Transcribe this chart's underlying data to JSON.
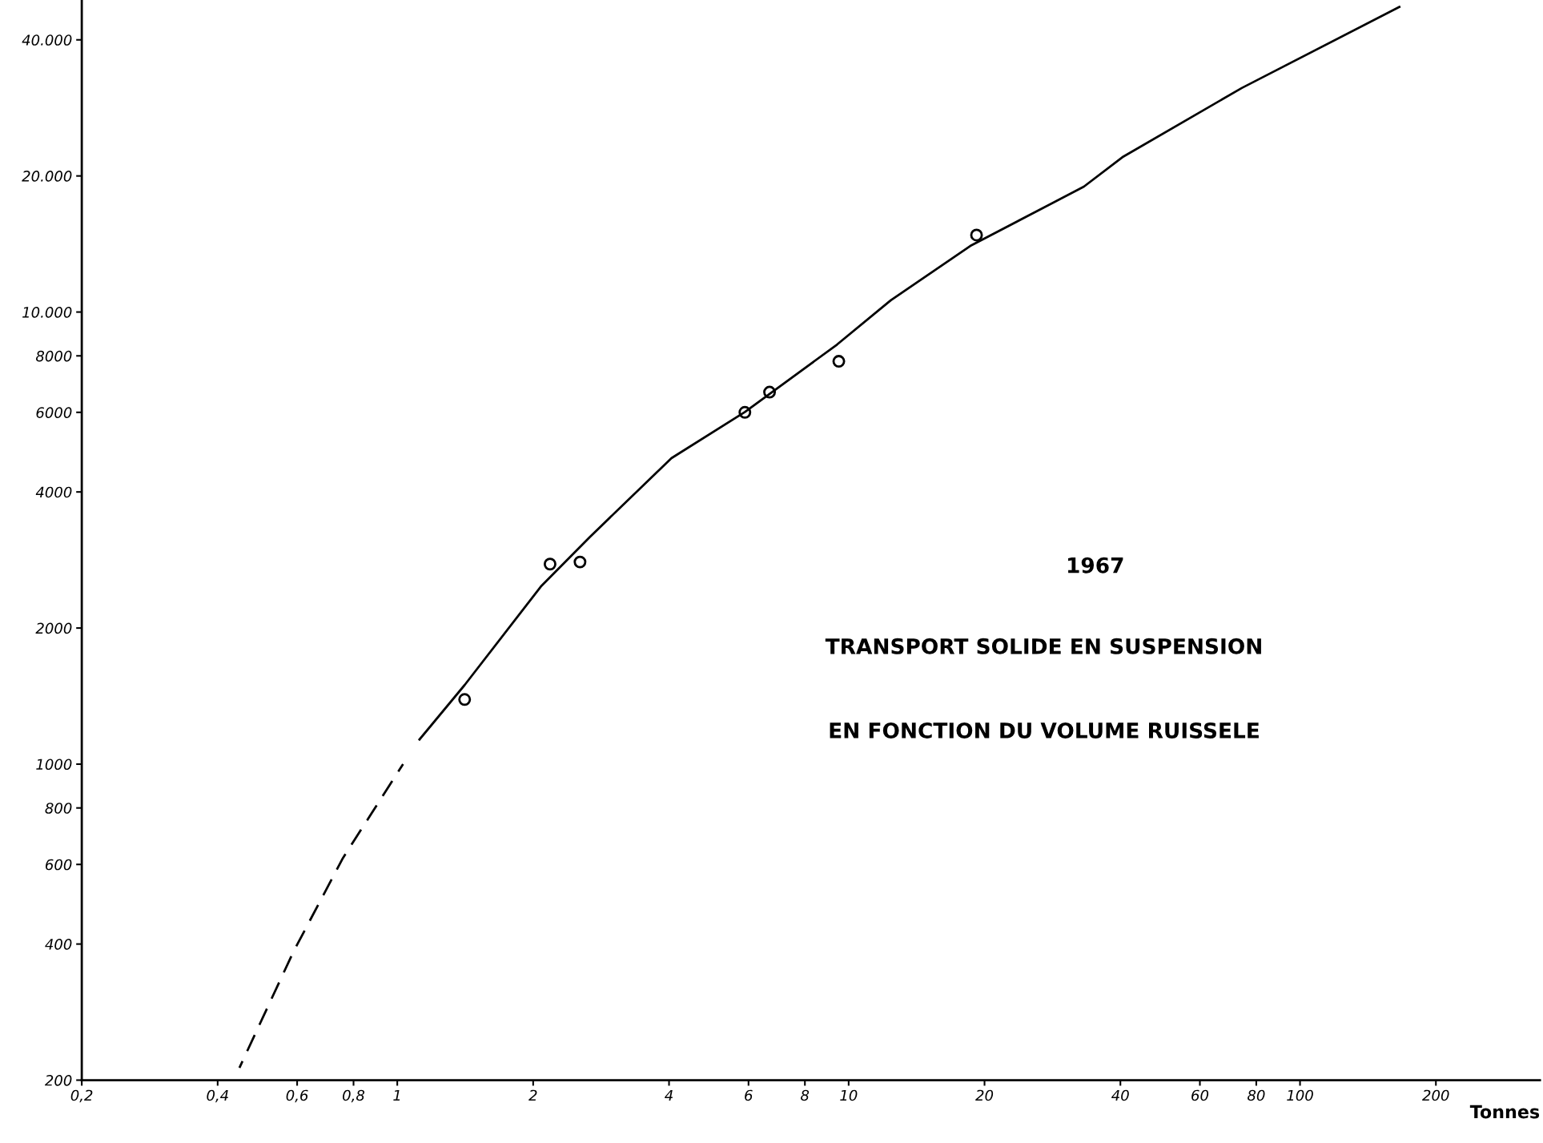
{
  "chart_data": {
    "type": "scatter",
    "xlabel": "Tonnes",
    "log": "xy",
    "xlim": [
      0.2,
      340
    ],
    "ylim": [
      200,
      49000
    ],
    "xticks": [
      {
        "value": 0.2,
        "label": "0,2"
      },
      {
        "value": 0.4,
        "label": "0,4"
      },
      {
        "value": 0.6,
        "label": "0,6"
      },
      {
        "value": 0.8,
        "label": "0,8"
      },
      1,
      2,
      4,
      6,
      8,
      10,
      20,
      40,
      60,
      80,
      100,
      200
    ],
    "yticks": [
      200,
      400,
      600,
      800,
      1000,
      2000,
      4000,
      6000,
      8000,
      {
        "value": 10000,
        "label": "10.000"
      },
      {
        "value": 20000,
        "label": "20.000"
      },
      {
        "value": 40000,
        "label": "40.000"
      }
    ],
    "grid": false,
    "annotations": [
      "1967",
      "TRANSPORT SOLIDE EN SUSPENSION",
      "EN FONCTION DU VOLUME RUISSELE"
    ],
    "series": [
      {
        "color": "#000000",
        "marker": "circle",
        "x": [
          1.41,
          2.18,
          2.54,
          5.89,
          6.68,
          9.51,
          19.2
        ],
        "values": [
          1390,
          2770,
          2800,
          6000,
          6650,
          7780,
          14800
        ]
      },
      {
        "type": "line",
        "color": "#000000",
        "line_style": "dashed",
        "marker": "none",
        "x": [
          0.447,
          0.589,
          0.758,
          1.03
        ],
        "values": [
          213,
          385,
          620,
          1000
        ]
      },
      {
        "type": "line",
        "color": "#000000",
        "line_style": "solid",
        "marker": "none",
        "x": [
          1.12,
          1.41,
          2.08,
          2.67,
          4.05,
          5.89,
          9.42,
          12.4,
          18.6,
          33.2,
          40.4,
          74.3,
          166
        ],
        "values": [
          1134,
          1496,
          2470,
          3180,
          4750,
          6010,
          8470,
          10620,
          14000,
          18940,
          22000,
          31300,
          47300
        ]
      }
    ]
  }
}
